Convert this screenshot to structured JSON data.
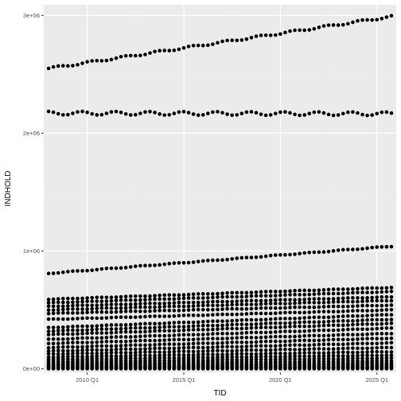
{
  "chart_data": {
    "type": "scatter",
    "title": "",
    "xlabel": "TID",
    "ylabel": "INDHOLD",
    "x_start": "2008 Q1",
    "x_end": "2025 Q4",
    "xlim": [
      "2007 Q4",
      "2026 Q1"
    ],
    "ylim": [
      -30000,
      3090000
    ],
    "x_ticks": [
      {
        "label": "2010 Q1",
        "at": "2010 Q1"
      },
      {
        "label": "2015 Q1",
        "at": "2015 Q1"
      },
      {
        "label": "2020 Q1",
        "at": "2020 Q1"
      },
      {
        "label": "2025 Q1",
        "at": "2025 Q1"
      }
    ],
    "y_ticks": [
      {
        "label": "0e+00",
        "value": 0
      },
      {
        "label": "1e+06",
        "value": 1000000
      },
      {
        "label": "2e+06",
        "value": 2000000
      },
      {
        "label": "3e+06",
        "value": 3000000
      }
    ],
    "grid": true,
    "legend": "none",
    "series": [
      {
        "start": 2550000,
        "end": 2990000,
        "wiggle": 8000
      },
      {
        "start": 2170000,
        "end": 2165000,
        "wiggle": 15000
      },
      {
        "start": 810000,
        "end": 1040000,
        "wiggle": 3000
      },
      {
        "start": 590000,
        "end": 690000,
        "wiggle": 2000
      },
      {
        "start": 560000,
        "end": 655000,
        "wiggle": 2000
      },
      {
        "start": 530000,
        "end": 610000,
        "wiggle": 2000
      },
      {
        "start": 500000,
        "end": 580000,
        "wiggle": 2000
      },
      {
        "start": 470000,
        "end": 540000,
        "wiggle": 2000
      },
      {
        "start": 420000,
        "end": 500000,
        "wiggle": 2000
      },
      {
        "start": 350000,
        "end": 460000,
        "wiggle": 2000
      },
      {
        "start": 320000,
        "end": 420000,
        "wiggle": 2000
      },
      {
        "start": 290000,
        "end": 385000,
        "wiggle": 2000
      },
      {
        "start": 250000,
        "end": 345000,
        "wiggle": 2000
      },
      {
        "start": 215000,
        "end": 300000,
        "wiggle": 2000
      },
      {
        "start": 180000,
        "end": 260000,
        "wiggle": 2000
      },
      {
        "start": 150000,
        "end": 220000,
        "wiggle": 2000
      },
      {
        "start": 125000,
        "end": 180000,
        "wiggle": 2000
      },
      {
        "start": 100000,
        "end": 145000,
        "wiggle": 2000
      },
      {
        "start": 80000,
        "end": 115000,
        "wiggle": 1500
      },
      {
        "start": 62000,
        "end": 90000,
        "wiggle": 1500
      },
      {
        "start": 48000,
        "end": 68000,
        "wiggle": 1500
      },
      {
        "start": 36000,
        "end": 50000,
        "wiggle": 1500
      },
      {
        "start": 25000,
        "end": 35000,
        "wiggle": 1500
      },
      {
        "start": 16000,
        "end": 22000,
        "wiggle": 1000
      },
      {
        "start": 9000,
        "end": 12000,
        "wiggle": 1000
      },
      {
        "start": 4000,
        "end": 6000,
        "wiggle": 500
      },
      {
        "start": 1000,
        "end": 1500,
        "wiggle": 300
      }
    ]
  },
  "colors": {
    "panel": "#ebebeb",
    "grid_major": "#ffffff",
    "grid_minor": "#f2f2f2",
    "point": "#000000",
    "tick": "#333333",
    "tick_label": "#4d4d4d"
  }
}
